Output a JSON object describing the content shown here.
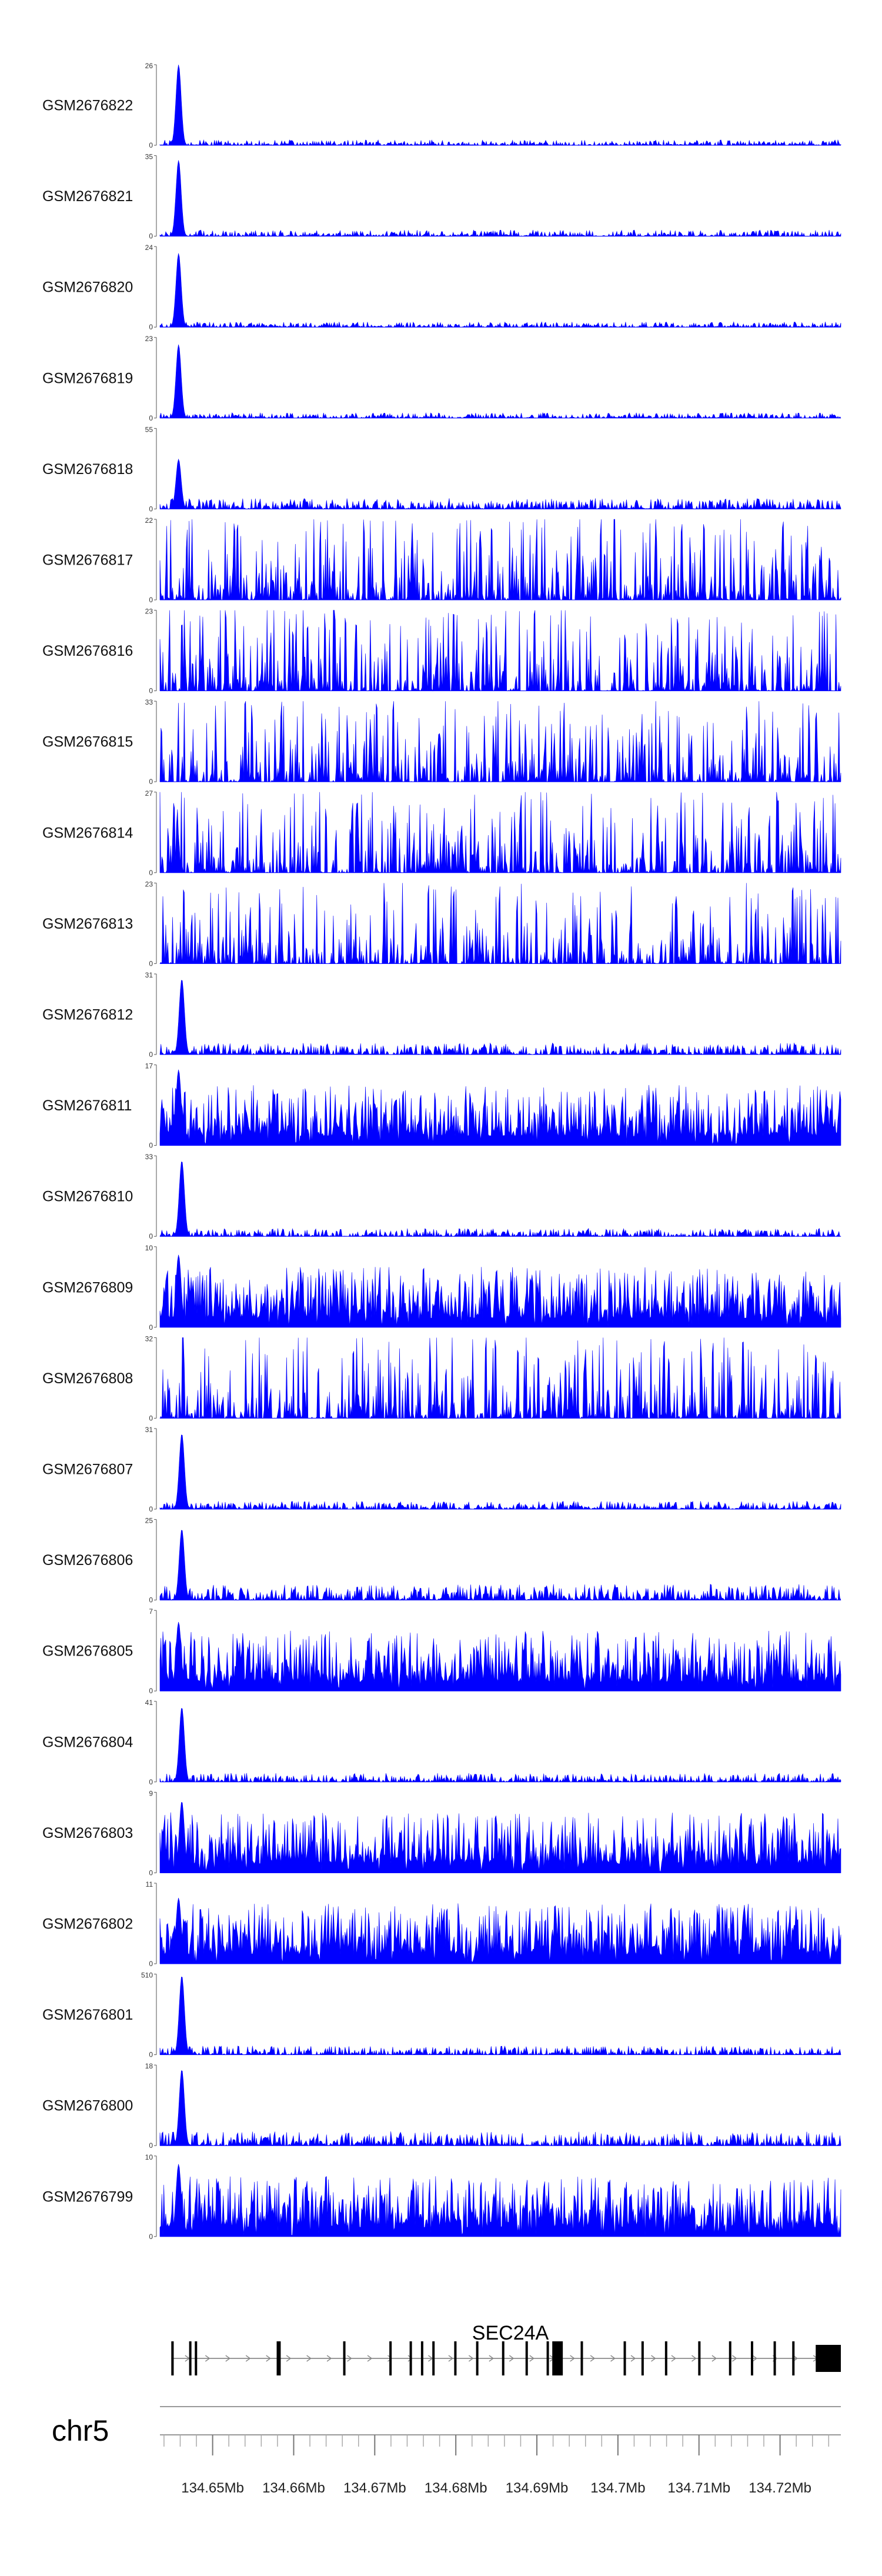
{
  "chart_data": {
    "type": "area",
    "chromosome": "chr5",
    "gene": {
      "name": "SEC24A",
      "strand": "+"
    },
    "x_range_mb": [
      134.6435,
      134.7275
    ],
    "x_ticks": [
      {
        "value": 134.65,
        "label": "134.65Mb"
      },
      {
        "value": 134.66,
        "label": "134.66Mb"
      },
      {
        "value": 134.67,
        "label": "134.67Mb"
      },
      {
        "value": 134.68,
        "label": "134.68Mb"
      },
      {
        "value": 134.69,
        "label": "134.69Mb"
      },
      {
        "value": 134.7,
        "label": "134.7Mb"
      },
      {
        "value": 134.71,
        "label": "134.71Mb"
      },
      {
        "value": 134.72,
        "label": "134.72Mb"
      }
    ],
    "exons_mb": [
      [
        134.6449,
        134.6452
      ],
      [
        134.6471,
        134.6473
      ],
      [
        134.6478,
        134.648
      ],
      [
        134.6579,
        134.6584
      ],
      [
        134.6661,
        134.6662
      ],
      [
        134.6718,
        134.672
      ],
      [
        134.6743,
        134.6744
      ],
      [
        134.6757,
        134.6758
      ],
      [
        134.6771,
        134.6772
      ],
      [
        134.6798,
        134.6799
      ],
      [
        134.6825,
        134.6826
      ],
      [
        134.6857,
        134.6858
      ],
      [
        134.6886,
        134.6887
      ],
      [
        134.6912,
        134.6914
      ],
      [
        134.6919,
        134.6932
      ],
      [
        134.6954,
        134.6955
      ],
      [
        134.7007,
        134.7008
      ],
      [
        134.7029,
        134.7031
      ],
      [
        134.7058,
        134.7059
      ],
      [
        134.7099,
        134.7101
      ],
      [
        134.7137,
        134.7138
      ],
      [
        134.7164,
        134.7165
      ],
      [
        134.7192,
        134.7193
      ],
      [
        134.7215,
        134.7216
      ],
      [
        134.7244,
        134.7275
      ]
    ],
    "series": [
      {
        "name": "GSM2676822",
        "ylim": 26,
        "shape": "peak",
        "peak_mb": 134.6458,
        "peak": 26,
        "noise": 3.0
      },
      {
        "name": "GSM2676821",
        "ylim": 35,
        "shape": "peak",
        "peak_mb": 134.6458,
        "peak": 33,
        "noise": 3.5
      },
      {
        "name": "GSM2676820",
        "ylim": 24,
        "shape": "peak",
        "peak_mb": 134.6458,
        "peak": 22,
        "noise": 3.0
      },
      {
        "name": "GSM2676819",
        "ylim": 23,
        "shape": "peak",
        "peak_mb": 134.6458,
        "peak": 21,
        "noise": 3.0
      },
      {
        "name": "GSM2676818",
        "ylim": 55,
        "shape": "peak",
        "peak_mb": 134.6458,
        "peak": 34,
        "noise": 6.0
      },
      {
        "name": "GSM2676817",
        "ylim": 22,
        "shape": "spiky",
        "noise": 20
      },
      {
        "name": "GSM2676816",
        "ylim": 23,
        "shape": "spiky",
        "noise": 20
      },
      {
        "name": "GSM2676815",
        "ylim": 33,
        "shape": "spiky",
        "noise": 22
      },
      {
        "name": "GSM2676814",
        "ylim": 27,
        "shape": "spiky",
        "noise": 18
      },
      {
        "name": "GSM2676813",
        "ylim": 23,
        "shape": "spiky",
        "noise": 21
      },
      {
        "name": "GSM2676812",
        "ylim": 31,
        "shape": "peak",
        "peak_mb": 134.6462,
        "peak": 29,
        "noise": 6.5
      },
      {
        "name": "GSM2676811",
        "ylim": 17,
        "shape": "dense",
        "peak_mb": 134.6458,
        "peak": 16,
        "noise": 7.0
      },
      {
        "name": "GSM2676810",
        "ylim": 33,
        "shape": "peak",
        "peak_mb": 134.6462,
        "peak": 31,
        "noise": 4.5
      },
      {
        "name": "GSM2676809",
        "ylim": 10,
        "shape": "dense",
        "peak_mb": 134.6458,
        "peak": 9,
        "noise": 5.0
      },
      {
        "name": "GSM2676808",
        "ylim": 32,
        "shape": "spiky",
        "noise": 20
      },
      {
        "name": "GSM2676807",
        "ylim": 31,
        "shape": "peak",
        "peak_mb": 134.6462,
        "peak": 29,
        "noise": 4.5
      },
      {
        "name": "GSM2676806",
        "ylim": 25,
        "shape": "peak",
        "peak_mb": 134.6462,
        "peak": 22,
        "noise": 9.0
      },
      {
        "name": "GSM2676805",
        "ylim": 7,
        "shape": "dense",
        "peak_mb": 134.6458,
        "peak": 6,
        "noise": 4.5
      },
      {
        "name": "GSM2676804",
        "ylim": 41,
        "shape": "peak",
        "peak_mb": 134.6462,
        "peak": 38,
        "noise": 5.0
      },
      {
        "name": "GSM2676803",
        "ylim": 9,
        "shape": "dense",
        "peak_mb": 134.6462,
        "peak": 8,
        "noise": 6.5
      },
      {
        "name": "GSM2676802",
        "ylim": 11,
        "shape": "dense",
        "peak_mb": 134.6458,
        "peak": 9,
        "noise": 6.0
      },
      {
        "name": "GSM2676801",
        "ylim": 510,
        "shape": "peak",
        "peak_mb": 134.6462,
        "peak": 500,
        "noise": 5.0
      },
      {
        "name": "GSM2676800",
        "ylim": 18,
        "shape": "peak",
        "peak_mb": 134.6462,
        "peak": 17,
        "noise": 8.0
      },
      {
        "name": "GSM2676799",
        "ylim": 10,
        "shape": "dense",
        "peak_mb": 134.6458,
        "peak": 9,
        "noise": 6.5
      }
    ],
    "colors": {
      "signal": "#0000ff",
      "gene": "#000000",
      "axis": "#555555",
      "grid_axis": "#999999"
    }
  }
}
